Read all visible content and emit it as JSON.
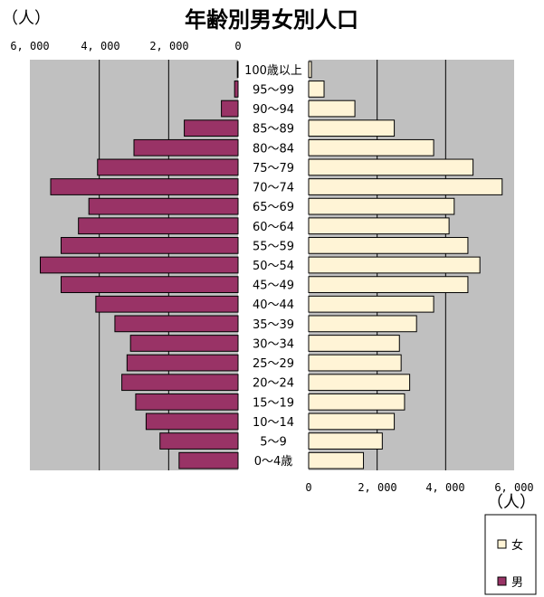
{
  "chart_data": {
    "type": "bar",
    "title": "年齢別男女別人口",
    "unit_label": "（人）",
    "categories": [
      "0～4歳",
      "5～9",
      "10～14",
      "15～19",
      "20～24",
      "25～29",
      "30～34",
      "35～39",
      "40～44",
      "45～49",
      "50～54",
      "55～59",
      "60～64",
      "65～69",
      "70～74",
      "75～79",
      "80～84",
      "85～89",
      "90～94",
      "95～99",
      "100歳以上"
    ],
    "series": [
      {
        "name": "男",
        "color": "#993366",
        "values": [
          1700,
          2250,
          2650,
          2950,
          3350,
          3200,
          3100,
          3550,
          4100,
          5100,
          5700,
          5100,
          4600,
          4300,
          5400,
          4050,
          3000,
          1550,
          480,
          100,
          20
        ]
      },
      {
        "name": "女",
        "color": "#fff4d6",
        "values": [
          1600,
          2150,
          2500,
          2800,
          2950,
          2700,
          2650,
          3150,
          3650,
          4650,
          5000,
          4650,
          4100,
          4250,
          5650,
          4800,
          3650,
          2500,
          1350,
          450,
          80
        ]
      }
    ],
    "left_ticks": [
      "6, 000",
      "4, 000",
      "2, 000",
      "0"
    ],
    "right_ticks": [
      "0",
      "2, 000",
      "4, 000",
      "6, 000"
    ],
    "xlim": [
      0,
      6000
    ],
    "legend_position": "bottom-right",
    "grid": true
  }
}
